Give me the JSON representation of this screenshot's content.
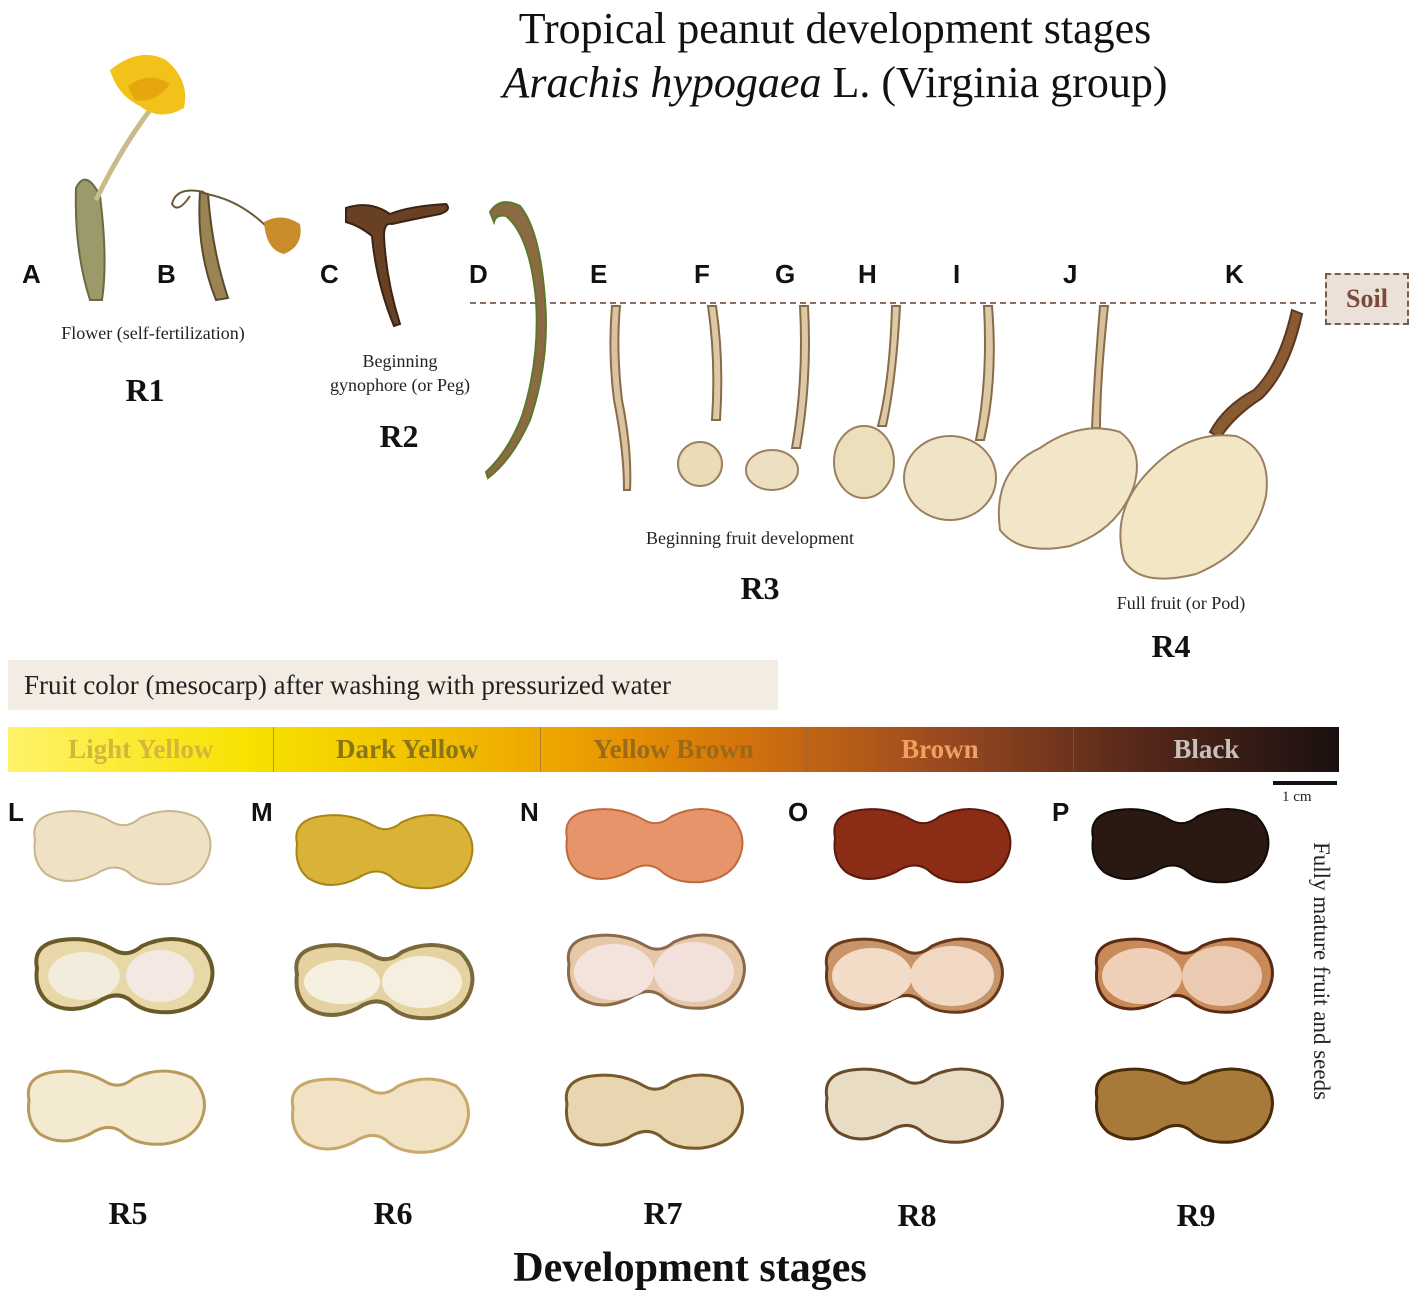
{
  "title": {
    "line1": "Tropical peanut development stages",
    "species_italic": "Arachis hypogaea",
    "species_rest": " L. (Virginia group)"
  },
  "soil_label": "Soil",
  "letters_top": [
    "A",
    "B",
    "C",
    "D",
    "E",
    "F",
    "G",
    "H",
    "I",
    "J",
    "K"
  ],
  "letters_bottom": [
    "L",
    "M",
    "N",
    "O",
    "P"
  ],
  "captions": {
    "flower": "Flower (self-fertilization)",
    "peg_line1": "Beginning",
    "peg_line2": "gynophore (or Peg)",
    "fruit_dev": "Beginning fruit development",
    "full_fruit": "Full fruit (or Pod)"
  },
  "stages_top": {
    "r1": "R1",
    "r2": "R2",
    "r3": "R3",
    "r4": "R4"
  },
  "color_header": "Fruit color (mesocarp) after washing with pressurized water",
  "color_scale": [
    {
      "label": "Light Yellow",
      "color": "#d4b63a"
    },
    {
      "label": "Dark Yellow",
      "color": "#8a7418"
    },
    {
      "label": "Yellow Brown",
      "color": "#9a6a18"
    },
    {
      "label": "Brown",
      "color": "#f0a060"
    },
    {
      "label": "Black",
      "color": "#c8c0bc"
    }
  ],
  "scale_bar_label": "1 cm",
  "side_label": "Fully mature fruit and seeds",
  "stages_bottom": [
    "R5",
    "R6",
    "R7",
    "R8",
    "R9"
  ],
  "bottom_title": "Development stages",
  "colors": {
    "flower": "#f3c21a",
    "stem": "#c9bb8a",
    "peg": "#a8744a",
    "pod_light": "#efe4c4",
    "pod_dark_yellow": "#d8b338",
    "pod_yellow_brown": "#e8946a",
    "pod_brown": "#8a2c16",
    "pod_black": "#2a1812",
    "seed": "#f1e4dc"
  }
}
